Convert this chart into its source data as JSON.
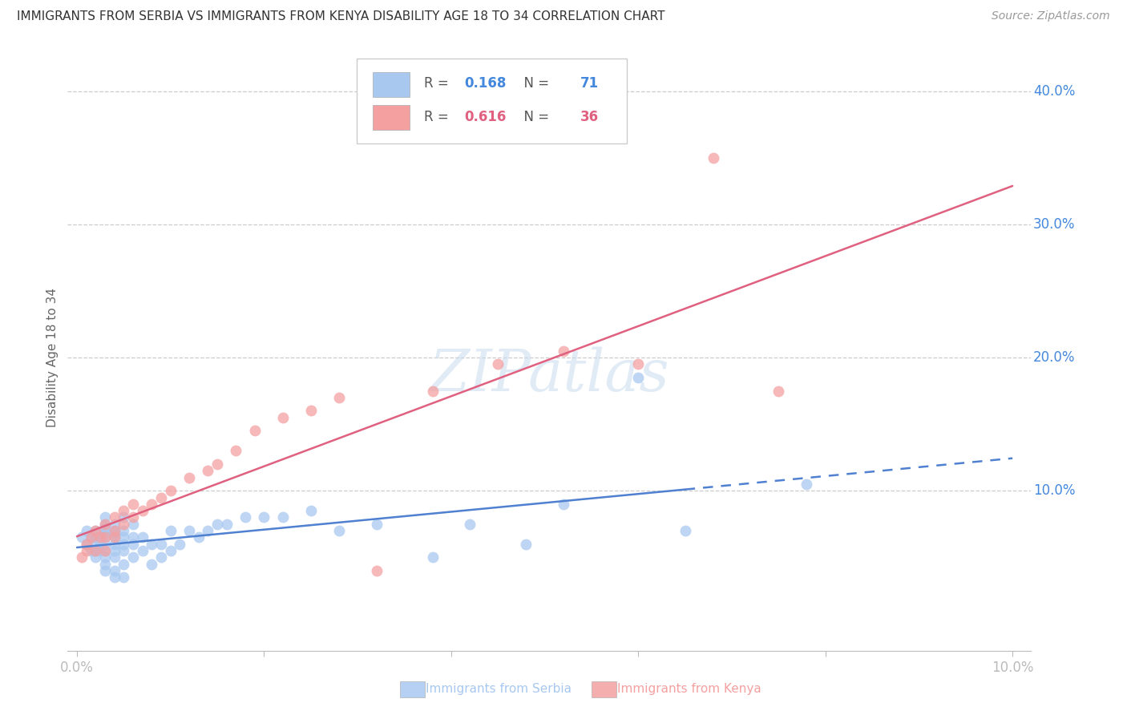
{
  "title": "IMMIGRANTS FROM SERBIA VS IMMIGRANTS FROM KENYA DISABILITY AGE 18 TO 34 CORRELATION CHART",
  "source": "Source: ZipAtlas.com",
  "ylabel": "Disability Age 18 to 34",
  "xlim": [
    -0.001,
    0.102
  ],
  "ylim": [
    -0.02,
    0.42
  ],
  "serbia_R": 0.168,
  "serbia_N": 71,
  "kenya_R": 0.616,
  "kenya_N": 36,
  "serbia_color": "#A8C8F0",
  "kenya_color": "#F4A0A0",
  "trend_serbia_color": "#5080D0",
  "trend_kenya_color": "#E06080",
  "grid_color": "#CCCCCC",
  "background_color": "#FFFFFF",
  "serbia_x": [
    0.0005,
    0.001,
    0.001,
    0.0015,
    0.0015,
    0.002,
    0.002,
    0.002,
    0.002,
    0.002,
    0.0025,
    0.0025,
    0.0025,
    0.003,
    0.003,
    0.003,
    0.003,
    0.003,
    0.003,
    0.003,
    0.003,
    0.003,
    0.003,
    0.003,
    0.004,
    0.004,
    0.004,
    0.004,
    0.004,
    0.004,
    0.004,
    0.004,
    0.004,
    0.005,
    0.005,
    0.005,
    0.005,
    0.005,
    0.005,
    0.005,
    0.006,
    0.006,
    0.006,
    0.006,
    0.007,
    0.007,
    0.008,
    0.008,
    0.009,
    0.009,
    0.01,
    0.01,
    0.011,
    0.012,
    0.013,
    0.014,
    0.015,
    0.016,
    0.018,
    0.02,
    0.022,
    0.025,
    0.028,
    0.032,
    0.038,
    0.042,
    0.048,
    0.052,
    0.06,
    0.065,
    0.078
  ],
  "serbia_y": [
    0.065,
    0.06,
    0.07,
    0.055,
    0.065,
    0.05,
    0.055,
    0.06,
    0.065,
    0.07,
    0.055,
    0.06,
    0.065,
    0.04,
    0.045,
    0.05,
    0.055,
    0.06,
    0.065,
    0.068,
    0.07,
    0.072,
    0.075,
    0.08,
    0.035,
    0.04,
    0.05,
    0.055,
    0.06,
    0.065,
    0.068,
    0.07,
    0.075,
    0.035,
    0.045,
    0.055,
    0.06,
    0.065,
    0.07,
    0.08,
    0.05,
    0.06,
    0.065,
    0.075,
    0.055,
    0.065,
    0.045,
    0.06,
    0.05,
    0.06,
    0.055,
    0.07,
    0.06,
    0.07,
    0.065,
    0.07,
    0.075,
    0.075,
    0.08,
    0.08,
    0.08,
    0.085,
    0.07,
    0.075,
    0.05,
    0.075,
    0.06,
    0.09,
    0.185,
    0.07,
    0.105
  ],
  "kenya_x": [
    0.0005,
    0.001,
    0.001,
    0.0015,
    0.002,
    0.002,
    0.0025,
    0.003,
    0.003,
    0.003,
    0.004,
    0.004,
    0.004,
    0.005,
    0.005,
    0.006,
    0.006,
    0.007,
    0.008,
    0.009,
    0.01,
    0.012,
    0.014,
    0.015,
    0.017,
    0.019,
    0.022,
    0.025,
    0.028,
    0.032,
    0.038,
    0.045,
    0.052,
    0.06,
    0.068,
    0.075
  ],
  "kenya_y": [
    0.05,
    0.055,
    0.06,
    0.065,
    0.055,
    0.07,
    0.065,
    0.055,
    0.065,
    0.075,
    0.065,
    0.07,
    0.08,
    0.075,
    0.085,
    0.08,
    0.09,
    0.085,
    0.09,
    0.095,
    0.1,
    0.11,
    0.115,
    0.12,
    0.13,
    0.145,
    0.155,
    0.16,
    0.17,
    0.04,
    0.175,
    0.195,
    0.205,
    0.195,
    0.35,
    0.175
  ]
}
